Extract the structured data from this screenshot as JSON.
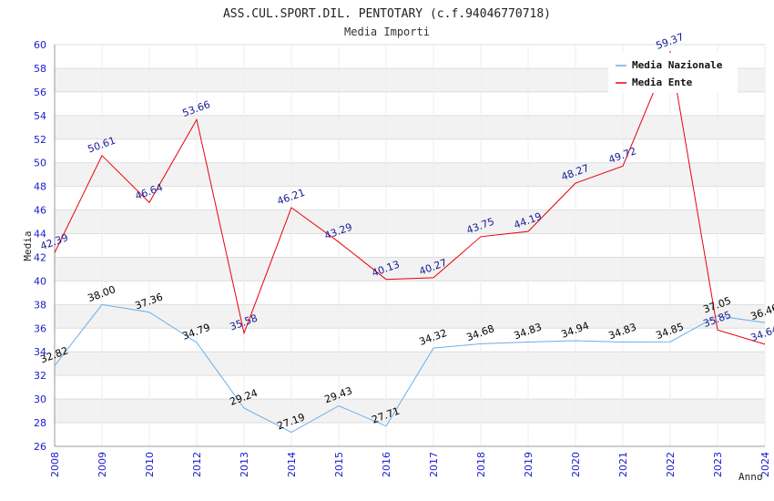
{
  "chart_data": {
    "type": "line",
    "title": "ASS.CUL.SPORT.DIL. PENTOTARY (c.f.94046770718)",
    "subtitle": "Media Importi",
    "xlabel": "Anno",
    "ylabel": "Media",
    "ylim": [
      26,
      60
    ],
    "yticks": [
      "26",
      "28",
      "30",
      "32",
      "34",
      "36",
      "38",
      "40",
      "42",
      "44",
      "46",
      "48",
      "50",
      "52",
      "54",
      "56",
      "58",
      "60"
    ],
    "grid": true,
    "legend_position": "top-right",
    "categories": [
      "2008",
      "2009",
      "2010",
      "2012",
      "2013",
      "2014",
      "2015",
      "2016",
      "2017",
      "2018",
      "2019",
      "2020",
      "2021",
      "2022",
      "2023",
      "2024"
    ],
    "series": [
      {
        "name": "Media Nazionale",
        "color": "#6aaee8",
        "label_color": "#000000",
        "values": [
          32.82,
          38.0,
          37.36,
          34.79,
          29.24,
          27.19,
          29.43,
          27.71,
          34.32,
          34.68,
          34.83,
          34.94,
          34.83,
          34.85,
          37.05,
          36.46
        ],
        "labels": [
          "32.82",
          "38.00",
          "37.36",
          "34.79",
          "29.24",
          "27.19",
          "29.43",
          "27.71",
          "34.32",
          "34.68",
          "34.83",
          "34.94",
          "34.83",
          "34.85",
          "37.05",
          "36.46"
        ]
      },
      {
        "name": "Media Ente",
        "color": "#e8000b",
        "label_color": "#1a1a99",
        "values": [
          42.39,
          50.61,
          46.64,
          53.66,
          35.58,
          46.21,
          43.29,
          40.13,
          40.27,
          43.75,
          44.19,
          48.27,
          49.72,
          59.37,
          35.85,
          34.64
        ],
        "labels": [
          "42.39",
          "50.61",
          "46.64",
          "53.66",
          "35.58",
          "46.21",
          "43.29",
          "40.13",
          "40.27",
          "43.75",
          "44.19",
          "48.27",
          "49.72",
          "59.37",
          "35.85",
          "34.64"
        ]
      }
    ]
  }
}
